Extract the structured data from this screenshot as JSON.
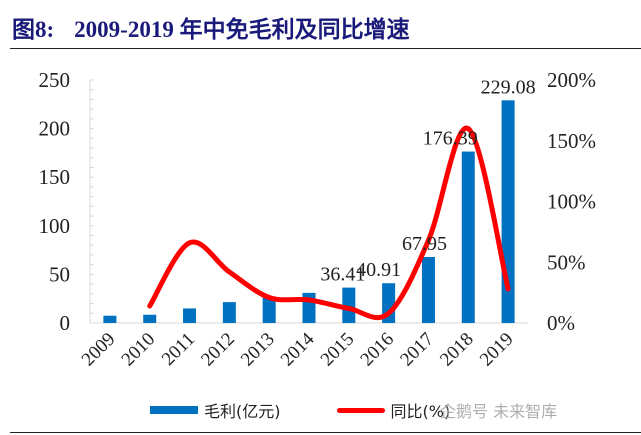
{
  "figure": {
    "label": "图8:",
    "title": "2009-2019 年中免毛利及同比增速"
  },
  "watermark": "企鹅号 未来智库",
  "chart_data": {
    "type": "bar+line",
    "title": "2009-2019 年中免毛利及同比增速",
    "categories": [
      "2009",
      "2010",
      "2011",
      "2012",
      "2013",
      "2014",
      "2015",
      "2016",
      "2017",
      "2018",
      "2019"
    ],
    "series": [
      {
        "name": "毛利(亿元)",
        "type": "bar",
        "axis": "left",
        "color": "#0070c0",
        "values": [
          7.5,
          8.5,
          15,
          21.5,
          27,
          31,
          36.41,
          40.91,
          67.95,
          176.39,
          229.08
        ],
        "data_labels": [
          null,
          null,
          null,
          null,
          null,
          null,
          "36.41",
          "40.91",
          "67.95",
          "176.39",
          "229.08"
        ]
      },
      {
        "name": "同比(%)",
        "type": "line",
        "axis": "right",
        "color": "#ff0000",
        "values": [
          null,
          14,
          66,
          42,
          21,
          19,
          12,
          8,
          68,
          160,
          28
        ]
      }
    ],
    "left_axis": {
      "min": 0,
      "max": 250,
      "ticks": [
        0,
        50,
        100,
        150,
        200,
        250
      ],
      "tick_labels": [
        "0",
        "50",
        "100",
        "150",
        "200",
        "250"
      ]
    },
    "right_axis": {
      "min": 0,
      "max": 200,
      "ticks": [
        0,
        50,
        100,
        150,
        200
      ],
      "tick_labels": [
        "0%",
        "50%",
        "100%",
        "150%",
        "200%"
      ]
    },
    "legend_position": "bottom",
    "grid": false
  }
}
